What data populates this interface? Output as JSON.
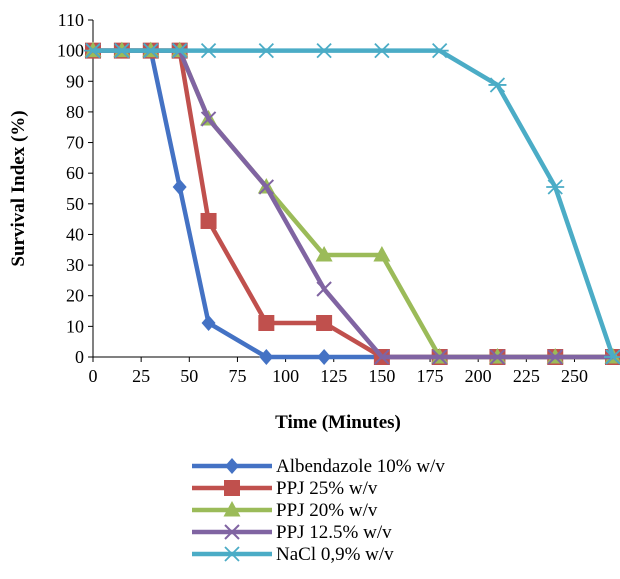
{
  "chart_data": {
    "type": "line",
    "title": "",
    "xlabel": "Time (Minutes)",
    "ylabel": "Survival Index (%)",
    "xlim": [
      0,
      270
    ],
    "ylim": [
      0,
      110
    ],
    "xticks": [
      "0",
      "25",
      "50",
      "75",
      "100",
      "125",
      "150",
      "175",
      "200",
      "225",
      "250"
    ],
    "yticks": [
      "0",
      "10",
      "20",
      "30",
      "40",
      "50",
      "60",
      "70",
      "80",
      "90",
      "100",
      "110"
    ],
    "grid": false,
    "legend_position": "bottom",
    "series": [
      {
        "name": "Albendazole 10% w/v",
        "color": "#4472C4",
        "marker": "diamond",
        "x": [
          0,
          15,
          30,
          45,
          60,
          90,
          120,
          150,
          180,
          210,
          240,
          270
        ],
        "y": [
          100,
          100,
          100,
          55.5,
          11.1,
          0,
          0,
          0,
          0,
          0,
          0,
          0
        ]
      },
      {
        "name": "PPJ 25%  w/v",
        "color": "#C0504D",
        "marker": "square",
        "x": [
          0,
          15,
          30,
          45,
          60,
          90,
          120,
          150,
          180,
          210,
          240,
          270
        ],
        "y": [
          100,
          100,
          100,
          100,
          44.4,
          11.1,
          11.1,
          0,
          0,
          0,
          0,
          0
        ]
      },
      {
        "name": "PPJ 20%  w/v",
        "color": "#9BBB59",
        "marker": "triangle",
        "x": [
          0,
          15,
          30,
          45,
          60,
          90,
          120,
          150,
          180,
          210,
          240,
          270
        ],
        "y": [
          100,
          100,
          100,
          100,
          77.7,
          55.5,
          33.3,
          33.3,
          0,
          0,
          0,
          0
        ]
      },
      {
        "name": "PPJ 12.5%  w/v",
        "color": "#8064A2",
        "marker": "x",
        "x": [
          0,
          15,
          30,
          45,
          60,
          90,
          120,
          150,
          180,
          210,
          240,
          270
        ],
        "y": [
          100,
          100,
          100,
          100,
          77.7,
          55.5,
          22.2,
          0,
          0,
          0,
          0,
          0
        ]
      },
      {
        "name": "NaCl 0,9% w/v",
        "color": "#4BACC6",
        "marker": "star",
        "x": [
          0,
          15,
          30,
          45,
          60,
          90,
          120,
          150,
          180,
          210,
          240,
          270
        ],
        "y": [
          100,
          100,
          100,
          100,
          100,
          100,
          100,
          100,
          100,
          88.8,
          55.5,
          0
        ]
      }
    ]
  }
}
